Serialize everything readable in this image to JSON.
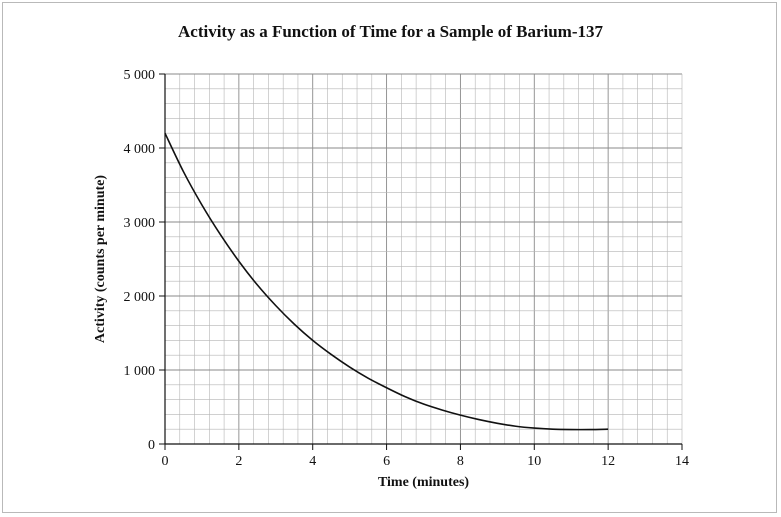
{
  "chart_data": {
    "type": "line",
    "title": "Activity as a Function of Time for a Sample of Barium-137",
    "xlabel": "Time (minutes)",
    "ylabel": "Activity (counts per minute)",
    "xlim": [
      0,
      14
    ],
    "ylim": [
      0,
      5000
    ],
    "x_ticks": [
      0,
      2,
      4,
      6,
      8,
      10,
      12,
      14
    ],
    "x_tick_labels": [
      "0",
      "2",
      "4",
      "6",
      "8",
      "10",
      "12",
      "14"
    ],
    "y_ticks": [
      0,
      1000,
      2000,
      3000,
      4000,
      5000
    ],
    "y_tick_labels": [
      "0",
      "1 000",
      "2 000",
      "3 000",
      "4 000",
      "5 000"
    ],
    "grid": true,
    "grid_minor_x": 0.4,
    "grid_minor_y": 200,
    "series": [
      {
        "x": [
          0,
          0.5,
          1,
          1.5,
          2,
          2.5,
          3,
          3.5,
          4,
          4.5,
          5,
          5.5,
          6,
          6.5,
          7,
          7.5,
          8,
          8.5,
          9,
          9.5,
          10,
          10.5,
          11,
          11.5,
          12
        ],
        "values": [
          4200,
          3680,
          3230,
          2830,
          2470,
          2150,
          1870,
          1620,
          1400,
          1210,
          1040,
          890,
          760,
          640,
          540,
          460,
          390,
          330,
          280,
          240,
          215,
          200,
          195,
          195,
          200
        ]
      }
    ],
    "colors": {
      "line": "#111111",
      "grid_minor": "#b5b5b5",
      "grid_major": "#8a8a8a",
      "axis": "#111111"
    }
  }
}
